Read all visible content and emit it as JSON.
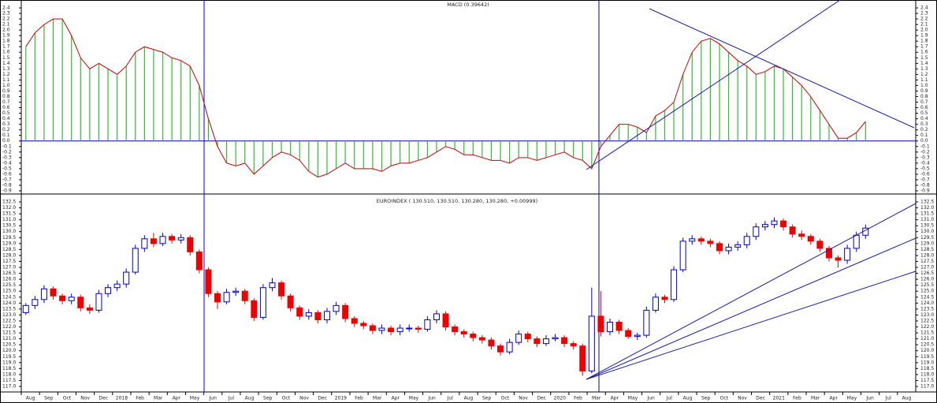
{
  "chart_data": [
    {
      "type": "bar",
      "title": "MACD (0.39642)",
      "color": "#33bb33",
      "line_color": "#cc0000",
      "ylim": [
        -0.9,
        2.4
      ],
      "yticks": [
        -0.9,
        -0.8,
        -0.7,
        -0.6,
        -0.5,
        -0.4,
        -0.3,
        -0.2,
        -0.1,
        {
          "value": 0,
          "label": "0.0"
        },
        0.1,
        0.2,
        0.3,
        0.4,
        0.5,
        0.6,
        0.7,
        0.8,
        0.9,
        {
          "value": 1,
          "label": "1.0"
        },
        1.1,
        1.2,
        1.3,
        1.4,
        1.5,
        1.6,
        1.7,
        1.8,
        1.9,
        {
          "value": 2,
          "label": "2.0"
        },
        2.1,
        2.2,
        2.3,
        2.4
      ],
      "values": [
        1.7,
        1.95,
        2.1,
        2.2,
        2.2,
        1.9,
        1.5,
        1.3,
        1.4,
        1.3,
        1.2,
        1.35,
        1.6,
        1.7,
        1.65,
        1.6,
        1.5,
        1.45,
        1.35,
        1.0,
        0.4,
        -0.1,
        -0.4,
        -0.45,
        -0.4,
        -0.6,
        -0.45,
        -0.3,
        -0.2,
        -0.25,
        -0.35,
        -0.55,
        -0.65,
        -0.6,
        -0.5,
        -0.4,
        -0.5,
        -0.5,
        -0.5,
        -0.55,
        -0.45,
        -0.4,
        -0.4,
        -0.35,
        -0.3,
        -0.2,
        -0.1,
        -0.15,
        -0.25,
        -0.25,
        -0.3,
        -0.35,
        -0.35,
        -0.4,
        -0.3,
        -0.3,
        -0.35,
        -0.3,
        -0.25,
        -0.2,
        -0.3,
        -0.35,
        -0.5,
        -0.1,
        0.1,
        0.3,
        0.3,
        0.25,
        0.15,
        0.45,
        0.55,
        0.7,
        1.2,
        1.6,
        1.8,
        1.85,
        1.75,
        1.6,
        1.45,
        1.35,
        1.2,
        1.25,
        1.35,
        1.3,
        1.15,
        1.0,
        0.8,
        0.55,
        0.3,
        0.05,
        0.05,
        0.15,
        0.35
      ]
    },
    {
      "type": "candlestick",
      "title": "EUROINDEX ( 130.510, 130.510, 130.280, 130.280, +0.00999)",
      "up_color": "#0000cc",
      "down_color": "#ee0000",
      "ylim": [
        117.0,
        132.5
      ],
      "yticks": [
        {
          "value": 117,
          "label": "117.0"
        },
        117.5,
        {
          "value": 118,
          "label": "118.0"
        },
        118.5,
        {
          "value": 119,
          "label": "119.0"
        },
        119.5,
        {
          "value": 120,
          "label": "120.0"
        },
        120.5,
        {
          "value": 121,
          "label": "121.0"
        },
        121.5,
        {
          "value": 122,
          "label": "122.0"
        },
        122.5,
        {
          "value": 123,
          "label": "123.0"
        },
        123.5,
        {
          "value": 124,
          "label": "124.0"
        },
        124.5,
        {
          "value": 125,
          "label": "125.0"
        },
        125.5,
        {
          "value": 126,
          "label": "126.0"
        },
        126.5,
        {
          "value": 127,
          "label": "127.0"
        },
        127.5,
        {
          "value": 128,
          "label": "128.0"
        },
        128.5,
        {
          "value": 129,
          "label": "129.0"
        },
        129.5,
        {
          "value": 130,
          "label": "130.0"
        },
        130.5,
        {
          "value": 131,
          "label": "131.0"
        },
        131.5,
        {
          "value": 132,
          "label": "132.0"
        },
        132.5
      ],
      "categories": [
        "Aug",
        "Sep",
        "Oct",
        "Nov",
        "Dec",
        "2018",
        "Feb",
        "Mar",
        "Apr",
        "May",
        "Jun",
        "Jul",
        "Aug",
        "Sep",
        "Oct",
        "Nov",
        "Dec",
        "2019",
        "Feb",
        "Mar",
        "Apr",
        "May",
        "Jun",
        "Jul",
        "Aug",
        "Sep",
        "Oct",
        "Nov",
        "Dec",
        "2020",
        "Feb",
        "Mar",
        "Apr",
        "May",
        "Jun",
        "Jul",
        "Aug",
        "Sep",
        "Oct",
        "Nov",
        "Dec",
        "2021",
        "Feb",
        "Mar",
        "Apr",
        "May",
        "Jun",
        "Jul",
        "Aug"
      ],
      "ohlc": [
        [
          123.2,
          124.0,
          123.0,
          123.8
        ],
        [
          123.8,
          124.6,
          123.5,
          124.3
        ],
        [
          124.3,
          125.5,
          124.0,
          125.2
        ],
        [
          125.2,
          125.4,
          124.3,
          124.6
        ],
        [
          124.6,
          124.8,
          123.9,
          124.2
        ],
        [
          124.2,
          124.8,
          123.9,
          124.5
        ],
        [
          124.5,
          124.7,
          123.3,
          123.6
        ],
        [
          123.6,
          123.9,
          123.1,
          123.4
        ],
        [
          123.4,
          125.1,
          123.2,
          124.8
        ],
        [
          124.8,
          125.6,
          124.5,
          125.3
        ],
        [
          125.3,
          125.9,
          125.0,
          125.6
        ],
        [
          125.6,
          126.9,
          125.3,
          126.6
        ],
        [
          126.6,
          128.9,
          126.4,
          128.6
        ],
        [
          128.6,
          129.7,
          128.3,
          129.4
        ],
        [
          129.4,
          129.9,
          128.7,
          129.0
        ],
        [
          129.0,
          129.9,
          128.8,
          129.6
        ],
        [
          129.6,
          129.8,
          129.0,
          129.3
        ],
        [
          129.3,
          129.8,
          129.0,
          129.5
        ],
        [
          129.5,
          129.7,
          128.0,
          128.3
        ],
        [
          128.3,
          128.5,
          126.5,
          126.8
        ],
        [
          126.8,
          127.0,
          124.5,
          124.8
        ],
        [
          124.8,
          125.0,
          123.5,
          124.1
        ],
        [
          124.1,
          125.2,
          123.9,
          124.9
        ],
        [
          124.9,
          125.3,
          124.6,
          125.0
        ],
        [
          125.0,
          125.2,
          123.9,
          124.2
        ],
        [
          124.2,
          124.4,
          122.5,
          122.8
        ],
        [
          122.8,
          125.6,
          122.6,
          125.3
        ],
        [
          125.3,
          126.1,
          125.0,
          125.7
        ],
        [
          125.7,
          125.9,
          124.3,
          124.6
        ],
        [
          124.6,
          124.8,
          123.3,
          123.6
        ],
        [
          123.6,
          123.8,
          122.6,
          122.9
        ],
        [
          122.9,
          123.5,
          122.6,
          123.2
        ],
        [
          123.2,
          123.4,
          122.3,
          122.6
        ],
        [
          122.6,
          123.6,
          122.3,
          123.3
        ],
        [
          123.3,
          124.1,
          123.0,
          123.8
        ],
        [
          123.8,
          124.0,
          122.4,
          122.7
        ],
        [
          122.7,
          122.9,
          122.0,
          122.3
        ],
        [
          122.3,
          122.5,
          121.8,
          122.1
        ],
        [
          122.1,
          122.3,
          121.4,
          121.7
        ],
        [
          121.7,
          122.2,
          121.4,
          121.9
        ],
        [
          121.9,
          122.1,
          121.3,
          121.6
        ],
        [
          121.6,
          122.2,
          121.3,
          121.9
        ],
        [
          121.9,
          122.2,
          121.6,
          121.9
        ],
        [
          121.9,
          122.1,
          121.5,
          121.8
        ],
        [
          121.8,
          122.9,
          121.6,
          122.6
        ],
        [
          122.6,
          123.4,
          122.3,
          123.1
        ],
        [
          123.1,
          123.3,
          121.7,
          122.0
        ],
        [
          122.0,
          122.2,
          121.3,
          121.6
        ],
        [
          121.6,
          121.8,
          121.1,
          121.4
        ],
        [
          121.4,
          121.6,
          120.8,
          121.1
        ],
        [
          121.1,
          121.3,
          120.6,
          120.9
        ],
        [
          120.9,
          121.1,
          120.1,
          120.4
        ],
        [
          120.4,
          120.6,
          119.6,
          119.9
        ],
        [
          119.9,
          121.0,
          119.7,
          120.7
        ],
        [
          120.7,
          121.7,
          120.5,
          121.4
        ],
        [
          121.4,
          121.6,
          120.7,
          121.0
        ],
        [
          121.0,
          121.2,
          120.3,
          120.6
        ],
        [
          120.6,
          121.3,
          120.4,
          121.0
        ],
        [
          121.0,
          121.4,
          120.8,
          121.1
        ],
        [
          121.1,
          121.3,
          120.3,
          120.6
        ],
        [
          120.6,
          120.8,
          120.1,
          120.4
        ],
        [
          120.4,
          120.6,
          117.9,
          118.3
        ],
        [
          118.3,
          125.3,
          118.1,
          122.9
        ],
        [
          122.9,
          125.0,
          121.2,
          121.6
        ],
        [
          121.6,
          122.7,
          121.3,
          122.4
        ],
        [
          122.4,
          122.6,
          121.4,
          121.7
        ],
        [
          121.7,
          121.9,
          121.0,
          121.2
        ],
        [
          121.2,
          121.5,
          120.9,
          121.3
        ],
        [
          121.3,
          123.7,
          121.1,
          123.4
        ],
        [
          123.4,
          124.8,
          123.2,
          124.5
        ],
        [
          124.5,
          124.7,
          124.0,
          124.3
        ],
        [
          124.3,
          127.1,
          124.1,
          126.8
        ],
        [
          126.8,
          129.5,
          126.6,
          129.2
        ],
        [
          129.2,
          129.7,
          128.9,
          129.4
        ],
        [
          129.4,
          129.6,
          128.9,
          129.2
        ],
        [
          129.2,
          129.4,
          128.7,
          129.0
        ],
        [
          129.0,
          129.2,
          128.1,
          128.4
        ],
        [
          128.4,
          129.0,
          128.1,
          128.7
        ],
        [
          128.7,
          129.2,
          128.4,
          128.9
        ],
        [
          128.9,
          129.9,
          128.6,
          129.6
        ],
        [
          129.6,
          130.7,
          129.3,
          130.4
        ],
        [
          130.4,
          130.9,
          130.1,
          130.6
        ],
        [
          130.6,
          131.2,
          130.3,
          130.9
        ],
        [
          130.9,
          131.1,
          130.1,
          130.4
        ],
        [
          130.4,
          130.6,
          129.5,
          129.8
        ],
        [
          129.8,
          130.1,
          129.3,
          129.6
        ],
        [
          129.6,
          129.8,
          128.9,
          129.2
        ],
        [
          129.2,
          129.4,
          128.3,
          128.6
        ],
        [
          128.6,
          128.8,
          127.5,
          127.8
        ],
        [
          127.8,
          128.0,
          127.0,
          127.6
        ],
        [
          127.6,
          128.9,
          127.3,
          128.6
        ],
        [
          128.6,
          130.0,
          128.3,
          129.7
        ],
        [
          129.7,
          130.6,
          129.4,
          130.3
        ]
      ]
    }
  ]
}
